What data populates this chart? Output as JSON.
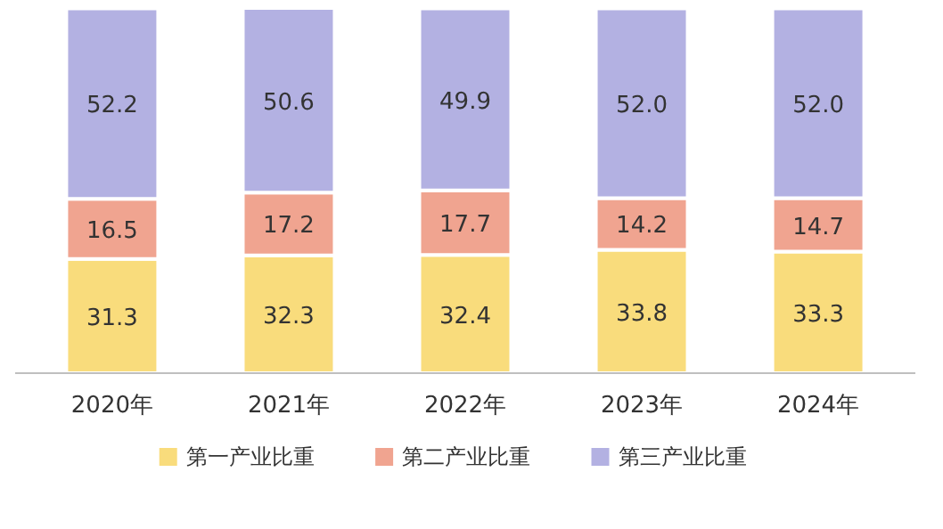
{
  "chart_data": {
    "type": "bar",
    "stacked": true,
    "legend": "bottom",
    "categories": [
      "2020年",
      "2021年",
      "2022年",
      "2023年",
      "2024年"
    ],
    "series": [
      {
        "name": "第一产业比重",
        "color": "#f9dc7c",
        "values": [
          31.3,
          32.3,
          32.4,
          33.8,
          33.3
        ],
        "value_labels": [
          "31.3",
          "32.3",
          "32.4",
          "33.8",
          "33.3"
        ]
      },
      {
        "name": "第二产业比重",
        "color": "#f0a490",
        "values": [
          16.5,
          17.2,
          17.7,
          14.2,
          14.7
        ],
        "value_labels": [
          "16.5",
          "17.2",
          "17.7",
          "14.2",
          "14.7"
        ]
      },
      {
        "name": "第三产业比重",
        "color": "#b3b1e2",
        "values": [
          52.2,
          50.6,
          49.9,
          52.0,
          52.0
        ],
        "value_labels": [
          "52.2",
          "50.6",
          "49.9",
          "52.0",
          "52.0"
        ]
      }
    ]
  }
}
